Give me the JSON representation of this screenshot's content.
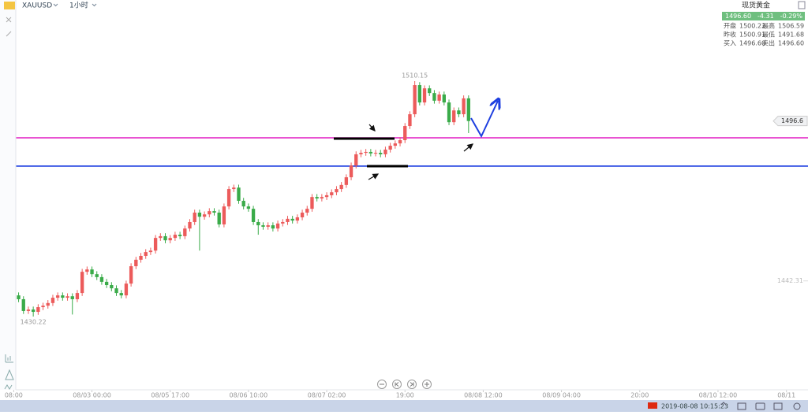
{
  "header": {
    "symbol": "XAUUSD",
    "interval": "1小时"
  },
  "quote_panel": {
    "title": "现货黄金",
    "price": "1496.60",
    "change": "-4.31",
    "change_pct": "-0.29%",
    "rows": [
      [
        "开盘",
        "1500.22",
        "最高",
        "1506.59"
      ],
      [
        "昨收",
        "1500.91",
        "最低",
        "1491.68"
      ],
      [
        "买入",
        "1496.60",
        "卖出",
        "1496.60"
      ]
    ]
  },
  "status_bar": {
    "datetime": "2019-08-08 10:15:23"
  },
  "chart_data": {
    "type": "candlestick",
    "up_color": "#ec5b5b",
    "down_color": "#3aab49",
    "xlim": [
      -0.8,
      164.4
    ],
    "ylim": [
      1405.34,
      1537.69
    ],
    "yticks": [
      1442.31
    ],
    "xticks": [
      {
        "value": 2,
        "label": "08:00"
      },
      {
        "value": 18,
        "label": "08/03 00:00"
      },
      {
        "value": 34,
        "label": "08/05 17:00"
      },
      {
        "value": 50,
        "label": "08/06 10:00"
      },
      {
        "value": 66,
        "label": "08/07 02:00"
      },
      {
        "value": 82,
        "label": "19:00"
      },
      {
        "value": 98,
        "label": "08/08 12:00"
      },
      {
        "value": 114,
        "label": "08/09 04:00"
      },
      {
        "value": 130,
        "label": "20:00"
      },
      {
        "value": 146,
        "label": "08/10 12:00"
      },
      {
        "value": 160,
        "label": "08/11"
      }
    ],
    "candles": [
      [
        1440.0,
        1445.1,
        1439.0,
        1444.1
      ],
      [
        1444.1,
        1445.1,
        1440.4,
        1441.4
      ],
      [
        1441.4,
        1442.4,
        1436.4,
        1437.4
      ],
      [
        1437.4,
        1438.4,
        1435.1,
        1436.1
      ],
      [
        1436.1,
        1437.1,
        1431.1,
        1432.1
      ],
      [
        1432.1,
        1433.6,
        1431.1,
        1432.6
      ],
      [
        1432.6,
        1433.6,
        1430.22,
        1431.8
      ],
      [
        1431.8,
        1434.4,
        1430.8,
        1433.4
      ],
      [
        1433.4,
        1434.9,
        1432.4,
        1433.9
      ],
      [
        1433.9,
        1435.8,
        1432.9,
        1434.8
      ],
      [
        1434.8,
        1437.6,
        1433.8,
        1436.6
      ],
      [
        1436.6,
        1438.4,
        1435.6,
        1437.4
      ],
      [
        1437.4,
        1438.4,
        1435.6,
        1436.6
      ],
      [
        1436.6,
        1438.1,
        1435.6,
        1437.1
      ],
      [
        1437.1,
        1438.1,
        1430.9,
        1436.1
      ],
      [
        1436.1,
        1439.2,
        1435.1,
        1438.2
      ],
      [
        1438.2,
        1446.4,
        1437.2,
        1445.4
      ],
      [
        1445.4,
        1447.2,
        1444.4,
        1446.2
      ],
      [
        1446.2,
        1447.2,
        1443.6,
        1444.6
      ],
      [
        1444.6,
        1445.6,
        1442.6,
        1443.6
      ],
      [
        1443.6,
        1444.6,
        1441.0,
        1442.0
      ],
      [
        1442.0,
        1443.0,
        1439.9,
        1440.9
      ],
      [
        1440.9,
        1441.9,
        1438.8,
        1439.8
      ],
      [
        1439.8,
        1440.8,
        1437.2,
        1438.2
      ],
      [
        1438.2,
        1439.2,
        1436.4,
        1437.4
      ],
      [
        1437.4,
        1442.4,
        1436.4,
        1441.4
      ],
      [
        1441.4,
        1448.3,
        1440.4,
        1447.3
      ],
      [
        1447.3,
        1450.5,
        1446.3,
        1449.5
      ],
      [
        1449.5,
        1451.8,
        1448.5,
        1450.8
      ],
      [
        1450.8,
        1453.1,
        1449.8,
        1452.1
      ],
      [
        1452.1,
        1453.6,
        1451.1,
        1452.6
      ],
      [
        1452.6,
        1457.9,
        1451.6,
        1456.9
      ],
      [
        1456.9,
        1458.5,
        1455.9,
        1457.5
      ],
      [
        1457.5,
        1458.5,
        1455.1,
        1456.1
      ],
      [
        1456.1,
        1457.9,
        1455.1,
        1456.9
      ],
      [
        1456.9,
        1459.0,
        1455.9,
        1458.0
      ],
      [
        1458.0,
        1459.0,
        1456.5,
        1457.5
      ],
      [
        1457.5,
        1461.1,
        1456.5,
        1460.1
      ],
      [
        1460.1,
        1463.3,
        1459.1,
        1462.3
      ],
      [
        1462.3,
        1466.5,
        1461.3,
        1465.5
      ],
      [
        1465.5,
        1466.5,
        1452.6,
        1464.1
      ],
      [
        1464.1,
        1465.9,
        1463.1,
        1464.9
      ],
      [
        1464.9,
        1467.0,
        1463.9,
        1466.0
      ],
      [
        1466.0,
        1467.0,
        1464.5,
        1465.5
      ],
      [
        1465.5,
        1466.5,
        1460.5,
        1461.5
      ],
      [
        1461.5,
        1468.6,
        1460.5,
        1467.6
      ],
      [
        1467.6,
        1474.5,
        1466.6,
        1473.5
      ],
      [
        1473.5,
        1475.0,
        1472.5,
        1474.0
      ],
      [
        1474.0,
        1475.0,
        1468.5,
        1469.5
      ],
      [
        1469.5,
        1470.5,
        1466.6,
        1467.6
      ],
      [
        1467.6,
        1468.6,
        1465.8,
        1466.8
      ],
      [
        1466.8,
        1467.8,
        1461.3,
        1462.3
      ],
      [
        1462.3,
        1463.3,
        1458.0,
        1461.2
      ],
      [
        1461.2,
        1462.2,
        1459.7,
        1460.7
      ],
      [
        1460.7,
        1462.2,
        1459.7,
        1461.2
      ],
      [
        1461.2,
        1462.2,
        1459.1,
        1460.1
      ],
      [
        1460.1,
        1462.8,
        1459.1,
        1461.8
      ],
      [
        1461.8,
        1463.3,
        1460.8,
        1462.3
      ],
      [
        1462.3,
        1464.4,
        1461.3,
        1463.4
      ],
      [
        1463.4,
        1464.4,
        1461.8,
        1462.8
      ],
      [
        1462.8,
        1464.9,
        1461.8,
        1463.9
      ],
      [
        1463.9,
        1466.5,
        1462.9,
        1465.5
      ],
      [
        1465.5,
        1467.8,
        1464.5,
        1466.8
      ],
      [
        1466.8,
        1471.8,
        1465.8,
        1470.8
      ],
      [
        1470.8,
        1471.8,
        1469.3,
        1470.3
      ],
      [
        1470.3,
        1471.8,
        1469.3,
        1470.8
      ],
      [
        1470.8,
        1472.4,
        1469.8,
        1471.4
      ],
      [
        1471.4,
        1473.4,
        1470.4,
        1472.4
      ],
      [
        1472.4,
        1474.5,
        1471.4,
        1473.5
      ],
      [
        1473.5,
        1475.9,
        1472.5,
        1474.9
      ],
      [
        1474.9,
        1478.5,
        1473.9,
        1477.5
      ],
      [
        1477.5,
        1482.5,
        1476.5,
        1481.5
      ],
      [
        1481.5,
        1486.3,
        1480.5,
        1485.3
      ],
      [
        1485.3,
        1486.8,
        1484.3,
        1485.8
      ],
      [
        1485.8,
        1487.1,
        1484.8,
        1486.1
      ],
      [
        1486.1,
        1487.1,
        1484.6,
        1485.6
      ],
      [
        1485.6,
        1486.8,
        1484.6,
        1485.8
      ],
      [
        1485.8,
        1486.8,
        1484.3,
        1485.3
      ],
      [
        1485.3,
        1487.9,
        1484.3,
        1486.9
      ],
      [
        1486.9,
        1489.2,
        1485.9,
        1488.2
      ],
      [
        1488.2,
        1490.0,
        1487.2,
        1489.0
      ],
      [
        1489.0,
        1491.1,
        1488.0,
        1490.1
      ],
      [
        1490.1,
        1495.9,
        1489.1,
        1494.9
      ],
      [
        1494.9,
        1499.9,
        1493.9,
        1498.9
      ],
      [
        1498.9,
        1510.15,
        1497.9,
        1508.8
      ],
      [
        1508.8,
        1509.8,
        1501.9,
        1502.9
      ],
      [
        1502.9,
        1508.7,
        1501.9,
        1507.7
      ],
      [
        1507.7,
        1508.7,
        1505.1,
        1506.1
      ],
      [
        1506.1,
        1507.1,
        1502.5,
        1503.5
      ],
      [
        1503.5,
        1506.6,
        1502.5,
        1505.6
      ],
      [
        1505.6,
        1506.6,
        1501.9,
        1502.9
      ],
      [
        1502.9,
        1503.9,
        1495.2,
        1496.2
      ],
      [
        1496.2,
        1501.2,
        1495.2,
        1500.2
      ],
      [
        1500.2,
        1501.2,
        1497.9,
        1498.9
      ],
      [
        1498.9,
        1505.3,
        1497.9,
        1504.3
      ],
      [
        1504.3,
        1505.3,
        1492.5,
        1496.6
      ]
    ],
    "high_label": 1510.15,
    "low_label": 1430.22,
    "price_tag": 1496.6,
    "hlines": [
      {
        "value": 1490.9,
        "color": "#e21cc4"
      },
      {
        "value": 1481.3,
        "color": "#1d3ee0"
      }
    ]
  }
}
